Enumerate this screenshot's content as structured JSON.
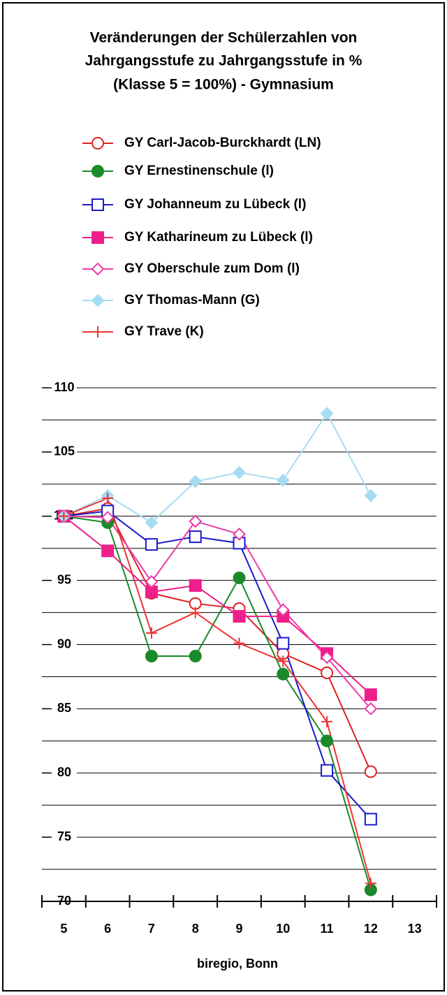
{
  "chart_data": {
    "type": "line",
    "title": [
      "Veränderungen der Schülerzahlen von",
      "Jahrgangsstufe zu Jahrgangsstufe in %",
      "(Klasse 5 = 100%) - Gymnasium"
    ],
    "source": "biregio, Bonn",
    "categories": [
      "5",
      "6",
      "7",
      "8",
      "9",
      "10",
      "11",
      "12",
      "13"
    ],
    "ylim": [
      70,
      110
    ],
    "yticks": [
      70,
      75,
      80,
      85,
      90,
      95,
      100,
      105,
      110
    ],
    "ygrid": [
      72.5,
      75,
      77.5,
      80,
      82.5,
      85,
      87.5,
      90,
      92.5,
      95,
      97.5,
      100,
      102.5,
      105,
      107.5,
      110
    ],
    "legend": "top",
    "series": [
      {
        "name": "GY Carl-Jacob-Burckhardt (LN)",
        "color": "#dd2222",
        "marker": "circle-open",
        "values": [
          100,
          100.6,
          94.0,
          93.2,
          92.8,
          89.3,
          87.8,
          80.1,
          null
        ]
      },
      {
        "name": "GY Ernestinenschule (l)",
        "color": "#1a8a2a",
        "marker": "circle-filled",
        "values": [
          100,
          99.5,
          89.1,
          89.1,
          95.2,
          87.7,
          82.5,
          70.9,
          null
        ]
      },
      {
        "name": "GY Johanneum zu Lübeck (l)",
        "color": "#1a1acc",
        "marker": "square-open",
        "values": [
          100,
          100.4,
          97.8,
          98.4,
          97.9,
          90.1,
          80.2,
          76.4,
          null
        ]
      },
      {
        "name": "GY Katharineum zu Lübeck (l)",
        "color": "#ee1f8a",
        "marker": "square-filled",
        "values": [
          100,
          97.3,
          94.1,
          94.6,
          92.2,
          92.2,
          89.3,
          86.1,
          null
        ]
      },
      {
        "name": "GY Oberschule zum Dom (l)",
        "color": "#ee3aa8",
        "marker": "diamond-open",
        "values": [
          100,
          99.9,
          94.9,
          99.6,
          98.6,
          92.7,
          89.0,
          85.0,
          null
        ]
      },
      {
        "name": "GY Thomas-Mann (G)",
        "color": "#a6dcf2",
        "marker": "diamond-filled",
        "values": [
          100,
          101.6,
          99.5,
          102.7,
          103.4,
          102.8,
          108.0,
          101.6,
          null
        ]
      },
      {
        "name": "GY Trave (K)",
        "color": "#ee3333",
        "marker": "plus",
        "values": [
          100,
          101.4,
          90.9,
          92.5,
          90.1,
          88.7,
          84.0,
          71.4,
          null
        ]
      }
    ]
  }
}
